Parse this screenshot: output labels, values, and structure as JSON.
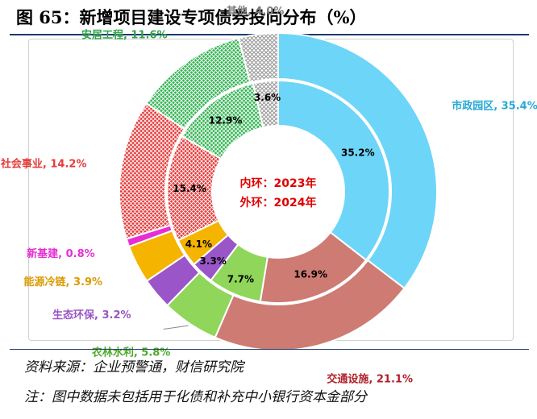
{
  "title": "图 65：新增项目建设专项债券投向分布（%）",
  "source": "资料来源：企业预警通，财信研究院",
  "note": "注：图中数据未包括用于化债和补充中小银行资本金部分",
  "chart_data": {
    "type": "doughnut",
    "title": "图 65：新增项目建设专项债券投向分布（%）",
    "center_labels": [
      "内环：2023年",
      "外环：2024年"
    ],
    "categories": [
      "市政园区",
      "交通设施",
      "农林水利",
      "生态环保",
      "能源冷链",
      "新基建",
      "社会事业",
      "安居工程",
      "其他"
    ],
    "colors": [
      "#6dd5f7",
      "#cd7b73",
      "#8fd65a",
      "#9a55c8",
      "#f4b400",
      "#e52fd3",
      "#e53b3b",
      "#33b553",
      "#c8c8c8"
    ],
    "patterned": [
      "社会事业",
      "安居工程",
      "其他"
    ],
    "series": [
      {
        "name": "2023年",
        "ring": "inner",
        "values": [
          35.2,
          16.9,
          7.7,
          3.3,
          4.1,
          null,
          15.4,
          12.9,
          3.6
        ],
        "value_labels": [
          "35.2%",
          "16.9%",
          "7.7%",
          "3.3%",
          "4.1%",
          "",
          "15.4%",
          "12.9%",
          "3.6%"
        ]
      },
      {
        "name": "2024年",
        "ring": "outer",
        "values": [
          35.4,
          21.1,
          5.8,
          3.2,
          3.9,
          0.8,
          14.2,
          11.6,
          4.0
        ],
        "labels": [
          "市政园区, 35.4%",
          "交通设施, 21.1%",
          "农林水利, 5.8%",
          "生态环保, 3.2%",
          "能源冷链, 3.9%",
          "新基建, 0.8%",
          "社会事业, 14.2%",
          "安居工程, 11.6%",
          "其他, 4.0%"
        ]
      }
    ]
  }
}
